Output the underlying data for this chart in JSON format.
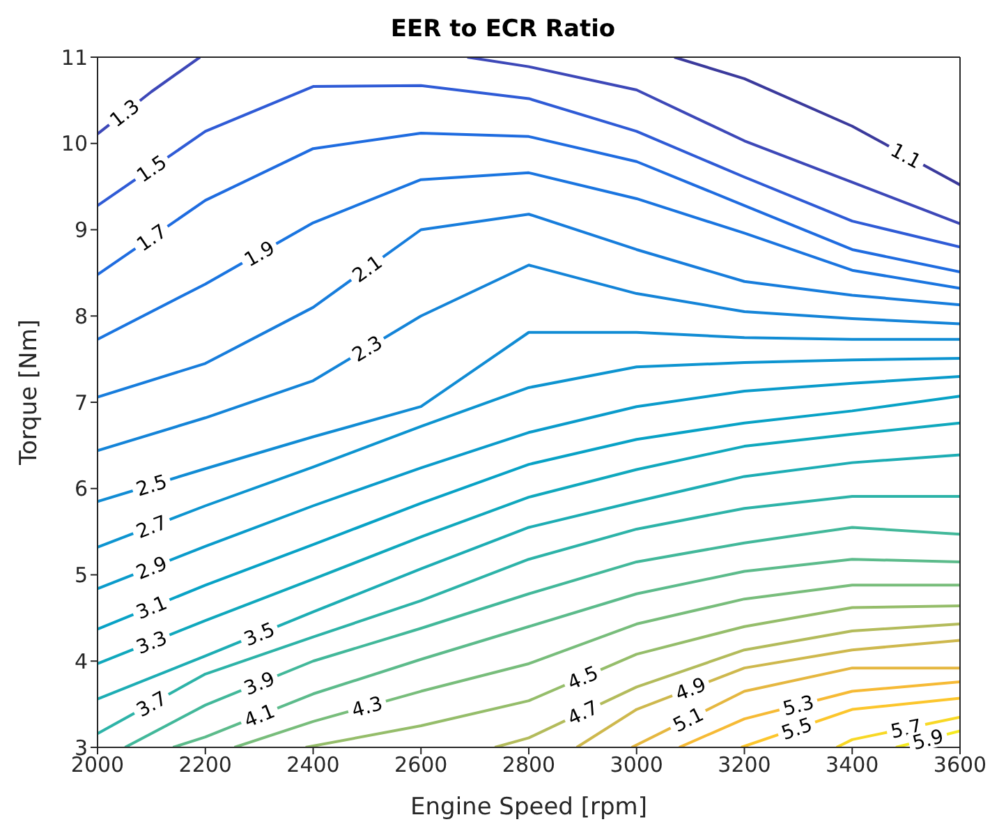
{
  "chart_data": {
    "type": "line",
    "title": "EER to ECR Ratio",
    "xlabel": "Engine Speed [rpm]",
    "ylabel": "Torque [Nm]",
    "xlim": [
      2000,
      3600
    ],
    "xticks": [
      2000,
      2200,
      2400,
      2600,
      2800,
      3000,
      3200,
      3400,
      3600
    ],
    "ylim": [
      3,
      11
    ],
    "yticks": [
      3,
      4,
      5,
      6,
      7,
      8,
      9,
      10,
      11
    ],
    "x": [
      2000,
      2200,
      2400,
      2600,
      2800,
      3000,
      3200,
      3400,
      3600
    ],
    "series": [
      {
        "name": "1.1",
        "color": "#3b3a9c",
        "x": [
          3070,
          3200,
          3400,
          3600
        ],
        "values": [
          11,
          10.75,
          10.2,
          9.52
        ]
      },
      {
        "name": "1.3",
        "color": "#3d48b8",
        "x": [
          2000,
          2100,
          2190,
          2440,
          2686,
          2800,
          3000,
          3200,
          3400,
          3600
        ],
        "values": [
          10.11,
          10.6,
          11,
          null,
          11,
          10.89,
          10.62,
          10.03,
          9.55,
          9.07
        ]
      },
      {
        "name": "1.5",
        "color": "#2f5bd6",
        "values": [
          9.28,
          10.14,
          10.66,
          10.67,
          10.52,
          10.14,
          9.61,
          9.1,
          8.8
        ]
      },
      {
        "name": "1.7",
        "color": "#1f6ce0",
        "values": [
          8.48,
          9.34,
          9.94,
          10.12,
          10.08,
          9.79,
          9.28,
          8.77,
          8.51
        ]
      },
      {
        "name": "1.9",
        "color": "#1a75e0",
        "values": [
          7.73,
          8.37,
          9.08,
          9.58,
          9.66,
          9.36,
          8.96,
          8.53,
          8.32
        ]
      },
      {
        "name": "2.1",
        "color": "#177ddc",
        "values": [
          7.06,
          7.45,
          8.1,
          9,
          9.18,
          8.77,
          8.4,
          8.24,
          8.13
        ]
      },
      {
        "name": "2.3",
        "color": "#1484d8",
        "values": [
          6.44,
          6.82,
          7.25,
          8,
          8.59,
          8.26,
          8.05,
          7.97,
          7.91
        ]
      },
      {
        "name": "2.5",
        "color": "#118cd4",
        "values": [
          5.85,
          6.23,
          6.6,
          6.95,
          7.81,
          7.81,
          7.75,
          7.73,
          7.73
        ]
      },
      {
        "name": "2.7",
        "color": "#0d94d0",
        "values": [
          5.32,
          5.8,
          6.25,
          6.72,
          7.17,
          7.41,
          7.46,
          7.49,
          7.51
        ]
      },
      {
        "name": "2.9",
        "color": "#0a9bcb",
        "values": [
          4.84,
          5.33,
          5.8,
          6.24,
          6.65,
          6.95,
          7.13,
          7.22,
          7.3
        ]
      },
      {
        "name": "3.1",
        "color": "#08a2c6",
        "values": [
          4.37,
          4.88,
          5.35,
          5.83,
          6.28,
          6.57,
          6.76,
          6.9,
          7.07
        ]
      },
      {
        "name": "3.3",
        "color": "#10a8bd",
        "values": [
          3.97,
          4.47,
          4.95,
          5.44,
          5.9,
          6.22,
          6.49,
          6.63,
          6.76
        ]
      },
      {
        "name": "3.5",
        "color": "#1dadb4",
        "values": [
          3.56,
          4.06,
          4.57,
          5.07,
          5.55,
          5.85,
          6.14,
          6.3,
          6.39
        ]
      },
      {
        "name": "3.7",
        "color": "#2db3a8",
        "values": [
          3.16,
          3.85,
          4.28,
          4.7,
          5.18,
          5.53,
          5.77,
          5.91,
          5.91
        ]
      },
      {
        "name": "3.9",
        "color": "#42b89a",
        "x": [
          2051,
          2200,
          2400,
          2600,
          2800,
          3000,
          3200,
          3400,
          3600
        ],
        "values": [
          3,
          3.49,
          4,
          4.38,
          4.78,
          5.15,
          5.37,
          5.55,
          5.47
        ]
      },
      {
        "name": "4.1",
        "color": "#5cbb8b",
        "x": [
          2140,
          2200,
          2400,
          2600,
          2800,
          3000,
          3200,
          3400,
          3600
        ],
        "values": [
          3,
          3.12,
          3.62,
          4.02,
          4.4,
          4.78,
          5.04,
          5.18,
          5.15
        ]
      },
      {
        "name": "4.3",
        "color": "#78bd7b",
        "x": [
          2254,
          2400,
          2600,
          2800,
          3000,
          3200,
          3400,
          3600
        ],
        "values": [
          3,
          3.3,
          3.65,
          3.97,
          4.43,
          4.72,
          4.88,
          4.88
        ]
      },
      {
        "name": "4.5",
        "color": "#95bd6a",
        "x": [
          2386,
          2600,
          2800,
          3000,
          3200,
          3400,
          3600
        ],
        "values": [
          3,
          3.25,
          3.54,
          4.08,
          4.4,
          4.62,
          4.64
        ]
      },
      {
        "name": "4.7",
        "color": "#b3bb5b",
        "x": [
          2737,
          2800,
          3000,
          3200,
          3400,
          3600
        ],
        "values": [
          3,
          3.11,
          3.7,
          4.13,
          4.35,
          4.43
        ]
      },
      {
        "name": "4.9",
        "color": "#ceb84d",
        "x": [
          2889,
          3000,
          3200,
          3400,
          3600
        ],
        "values": [
          3,
          3.44,
          3.92,
          4.13,
          4.24
        ]
      },
      {
        "name": "5.1",
        "color": "#e5b740",
        "x": [
          2991,
          3200,
          3400,
          3600
        ],
        "values": [
          3,
          3.65,
          3.92,
          3.92
        ]
      },
      {
        "name": "5.3",
        "color": "#f6ba35",
        "x": [
          3079,
          3200,
          3400,
          3600
        ],
        "values": [
          3,
          3.33,
          3.65,
          3.76
        ]
      },
      {
        "name": "5.5",
        "color": "#fcc62c",
        "x": [
          3194,
          3400,
          3600
        ],
        "values": [
          3,
          3.44,
          3.57
        ]
      },
      {
        "name": "5.7",
        "color": "#f8d825",
        "x": [
          3371,
          3400,
          3600
        ],
        "values": [
          3,
          3.09,
          3.35
        ]
      },
      {
        "name": "5.9",
        "color": "#f5ea1f",
        "x": [
          3481,
          3600
        ],
        "values": [
          3,
          3.19
        ]
      }
    ]
  }
}
